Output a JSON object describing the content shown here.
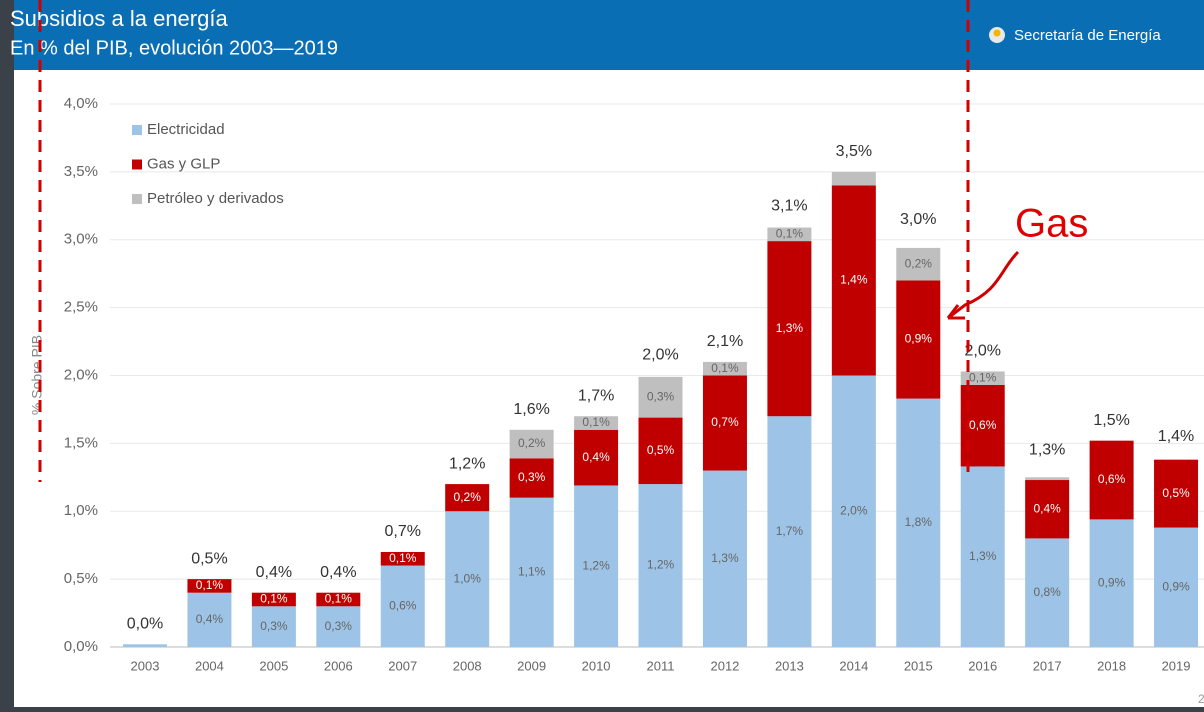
{
  "header": {
    "title": "Subsidios a la energía",
    "subtitle": "En % del PIB, evolución 2003—2019",
    "agency": "Secretaría de Energía"
  },
  "annotation": "Gas",
  "page_number": "2",
  "chart_data": {
    "type": "stacked-bar",
    "y_label": "% Sobre PIB",
    "categories": [
      "2003",
      "2004",
      "2005",
      "2006",
      "2007",
      "2008",
      "2009",
      "2010",
      "2011",
      "2012",
      "2013",
      "2014",
      "2015",
      "2016",
      "2017",
      "2018",
      "2019"
    ],
    "series": [
      {
        "name": "Electricidad",
        "color": "#9dc3e6",
        "label_color": "#666666",
        "values": [
          0.02,
          0.4,
          0.3,
          0.3,
          0.6,
          1.0,
          1.1,
          1.19,
          1.2,
          1.3,
          1.7,
          2.0,
          1.83,
          1.33,
          0.8,
          0.94,
          0.88
        ],
        "value_labels": [
          null,
          "0,4%",
          "0,3%",
          "0,3%",
          "0,6%",
          "1,0%",
          "1,1%",
          "1,2%",
          "1,2%",
          "1,3%",
          "1,7%",
          "2,0%",
          "1,8%",
          "1,3%",
          "0,8%",
          "0,9%",
          "0,9%"
        ]
      },
      {
        "name": "Gas y GLP",
        "color": "#c00000",
        "label_color": "#ffffff",
        "values": [
          0,
          0.1,
          0.1,
          0.1,
          0.1,
          0.2,
          0.29,
          0.41,
          0.49,
          0.7,
          1.29,
          1.4,
          0.87,
          0.6,
          0.43,
          0.58,
          0.5
        ],
        "value_labels": [
          null,
          "0,1%",
          "0,1%",
          "0,1%",
          "0,1%",
          "0,2%",
          "0,3%",
          "0,4%",
          "0,5%",
          "0,7%",
          "1,3%",
          "1,4%",
          "0,9%",
          "0,6%",
          "0,4%",
          "0,6%",
          "0,5%"
        ]
      },
      {
        "name": "Petróleo y derivados",
        "color": "#bfbfbf",
        "label_color": "#666666",
        "values": [
          0,
          0,
          0,
          0,
          0,
          0,
          0.21,
          0.1,
          0.3,
          0.1,
          0.1,
          0.1,
          0.24,
          0.1,
          0.02,
          0,
          0
        ],
        "value_labels": [
          null,
          null,
          null,
          null,
          null,
          null,
          "0,2%",
          "0,1%",
          "0,3%",
          "0,1%",
          "0,1%",
          null,
          "0,2%",
          "0,1%",
          null,
          null,
          null
        ]
      }
    ],
    "totals": {
      "values": [
        0.02,
        0.5,
        0.4,
        0.4,
        0.7,
        1.2,
        1.6,
        1.7,
        2.0,
        2.1,
        3.1,
        3.5,
        3.0,
        2.0,
        1.3,
        1.5,
        1.4
      ],
      "value_labels": [
        "0,0%",
        "0,5%",
        "0,4%",
        "0,4%",
        "0,7%",
        "1,2%",
        "1,6%",
        "1,7%",
        "2,0%",
        "2,1%",
        "3,1%",
        "3,5%",
        "3,0%",
        "2,0%",
        "1,3%",
        "1,5%",
        "1,4%"
      ]
    },
    "ylim": [
      0,
      4
    ],
    "yticks": [
      {
        "value": 0,
        "label": "0,0%"
      },
      {
        "value": 0.5,
        "label": "0,5%"
      },
      {
        "value": 1,
        "label": "1,0%"
      },
      {
        "value": 1.5,
        "label": "1,5%"
      },
      {
        "value": 2,
        "label": "2,0%"
      },
      {
        "value": 2.5,
        "label": "2,5%"
      },
      {
        "value": 3,
        "label": "3,0%"
      },
      {
        "value": 3.5,
        "label": "3,5%"
      },
      {
        "value": 4,
        "label": "4,0%"
      }
    ],
    "grid": true,
    "legend": "top-left"
  }
}
